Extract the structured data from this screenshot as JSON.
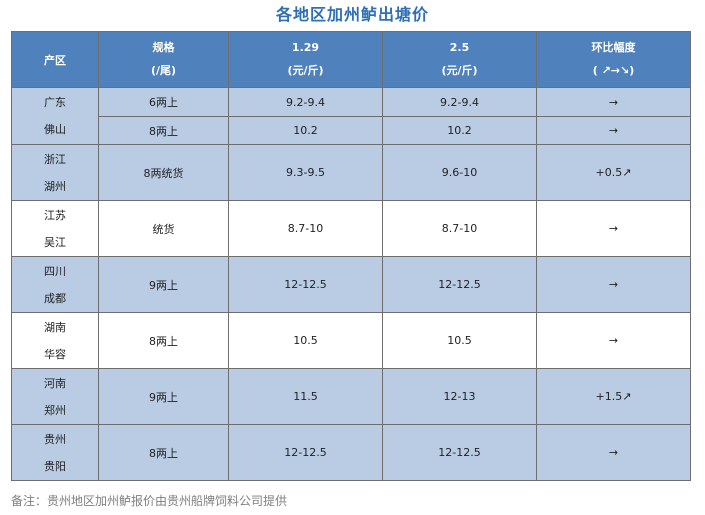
{
  "title": "各地区加州鲈出塘价",
  "header": {
    "region": "产区",
    "spec_line1": "规格",
    "spec_line2": "(/尾)",
    "date1_line1": "1.29",
    "date1_line2": "(元/斤)",
    "date2_line1": "2.5",
    "date2_line2": "(元/斤)",
    "change_line1": "环比幅度",
    "change_line2": "( ↗→↘)"
  },
  "groups": [
    {
      "region1": "广东",
      "region2": "佛山",
      "rows": [
        {
          "spec": "6两上",
          "d1": "9.2-9.4",
          "d2": "9.2-9.4",
          "change": "→"
        },
        {
          "spec": "8两上",
          "d1": "10.2",
          "d2": "10.2",
          "change": "→"
        }
      ]
    },
    {
      "region1": "浙江",
      "region2": "湖州",
      "rows": [
        {
          "spec": "8两统货",
          "d1": "9.3-9.5",
          "d2": "9.6-10",
          "change": "+0.5↗"
        }
      ]
    },
    {
      "region1": "江苏",
      "region2": "吴江",
      "rows": [
        {
          "spec": "统货",
          "d1": "8.7-10",
          "d2": "8.7-10",
          "change": "→"
        }
      ]
    },
    {
      "region1": "四川",
      "region2": "成都",
      "rows": [
        {
          "spec": "9两上",
          "d1": "12-12.5",
          "d2": "12-12.5",
          "change": "→"
        }
      ]
    },
    {
      "region1": "湖南",
      "region2": "华容",
      "rows": [
        {
          "spec": "8两上",
          "d1": "10.5",
          "d2": "10.5",
          "change": "→"
        }
      ]
    },
    {
      "region1": "河南",
      "region2": "郑州",
      "rows": [
        {
          "spec": "9两上",
          "d1": "11.5",
          "d2": "12-13",
          "change": "+1.5↗"
        }
      ]
    },
    {
      "region1": "贵州",
      "region2": "贵阳",
      "rows": [
        {
          "spec": "8两上",
          "d1": "12-12.5",
          "d2": "12-12.5",
          "change": "→"
        }
      ]
    }
  ],
  "colors": {
    "header": "#4f81bd",
    "row_blue": "#b9cce4",
    "up": "#e8191b",
    "title": "#2e6fb6"
  },
  "note": "备注：贵州地区加州鲈报价由贵州船牌饲料公司提供"
}
